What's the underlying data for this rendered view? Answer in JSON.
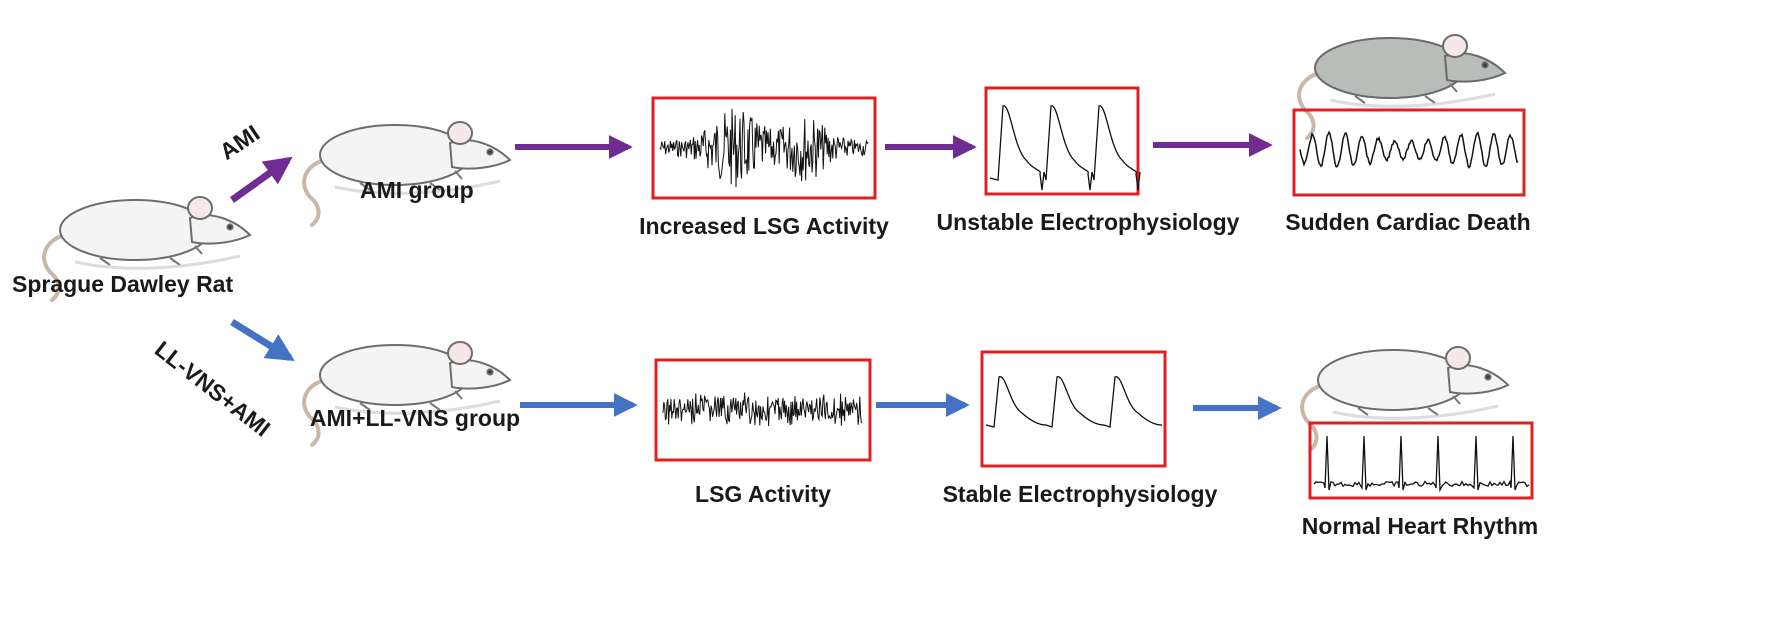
{
  "colors": {
    "top_arrow": "#6f2c91",
    "bottom_arrow": "#4472c4",
    "box_border": "#e02020",
    "rat_body": "#f4f4f4",
    "rat_grey": "#b9bdb9",
    "trace": "#111111"
  },
  "labels": {
    "start": "Sprague Dawley Rat",
    "ami_arrow": "AMI",
    "vns_arrow": "LL-VNS+AMI",
    "ami_group": "AMI group",
    "vns_group": "AMI+LL-VNS group",
    "top_activity": "Increased LSG Activity",
    "top_ep": "Unstable Electrophysiology",
    "top_outcome": "Sudden Cardiac Death",
    "bottom_activity": "LSG Activity",
    "bottom_ep": "Stable Electrophysiology",
    "bottom_outcome": "Normal Heart Rhythm"
  },
  "icons": {
    "rat": "rat-icon",
    "dead_rat": "grey-rat-icon"
  }
}
